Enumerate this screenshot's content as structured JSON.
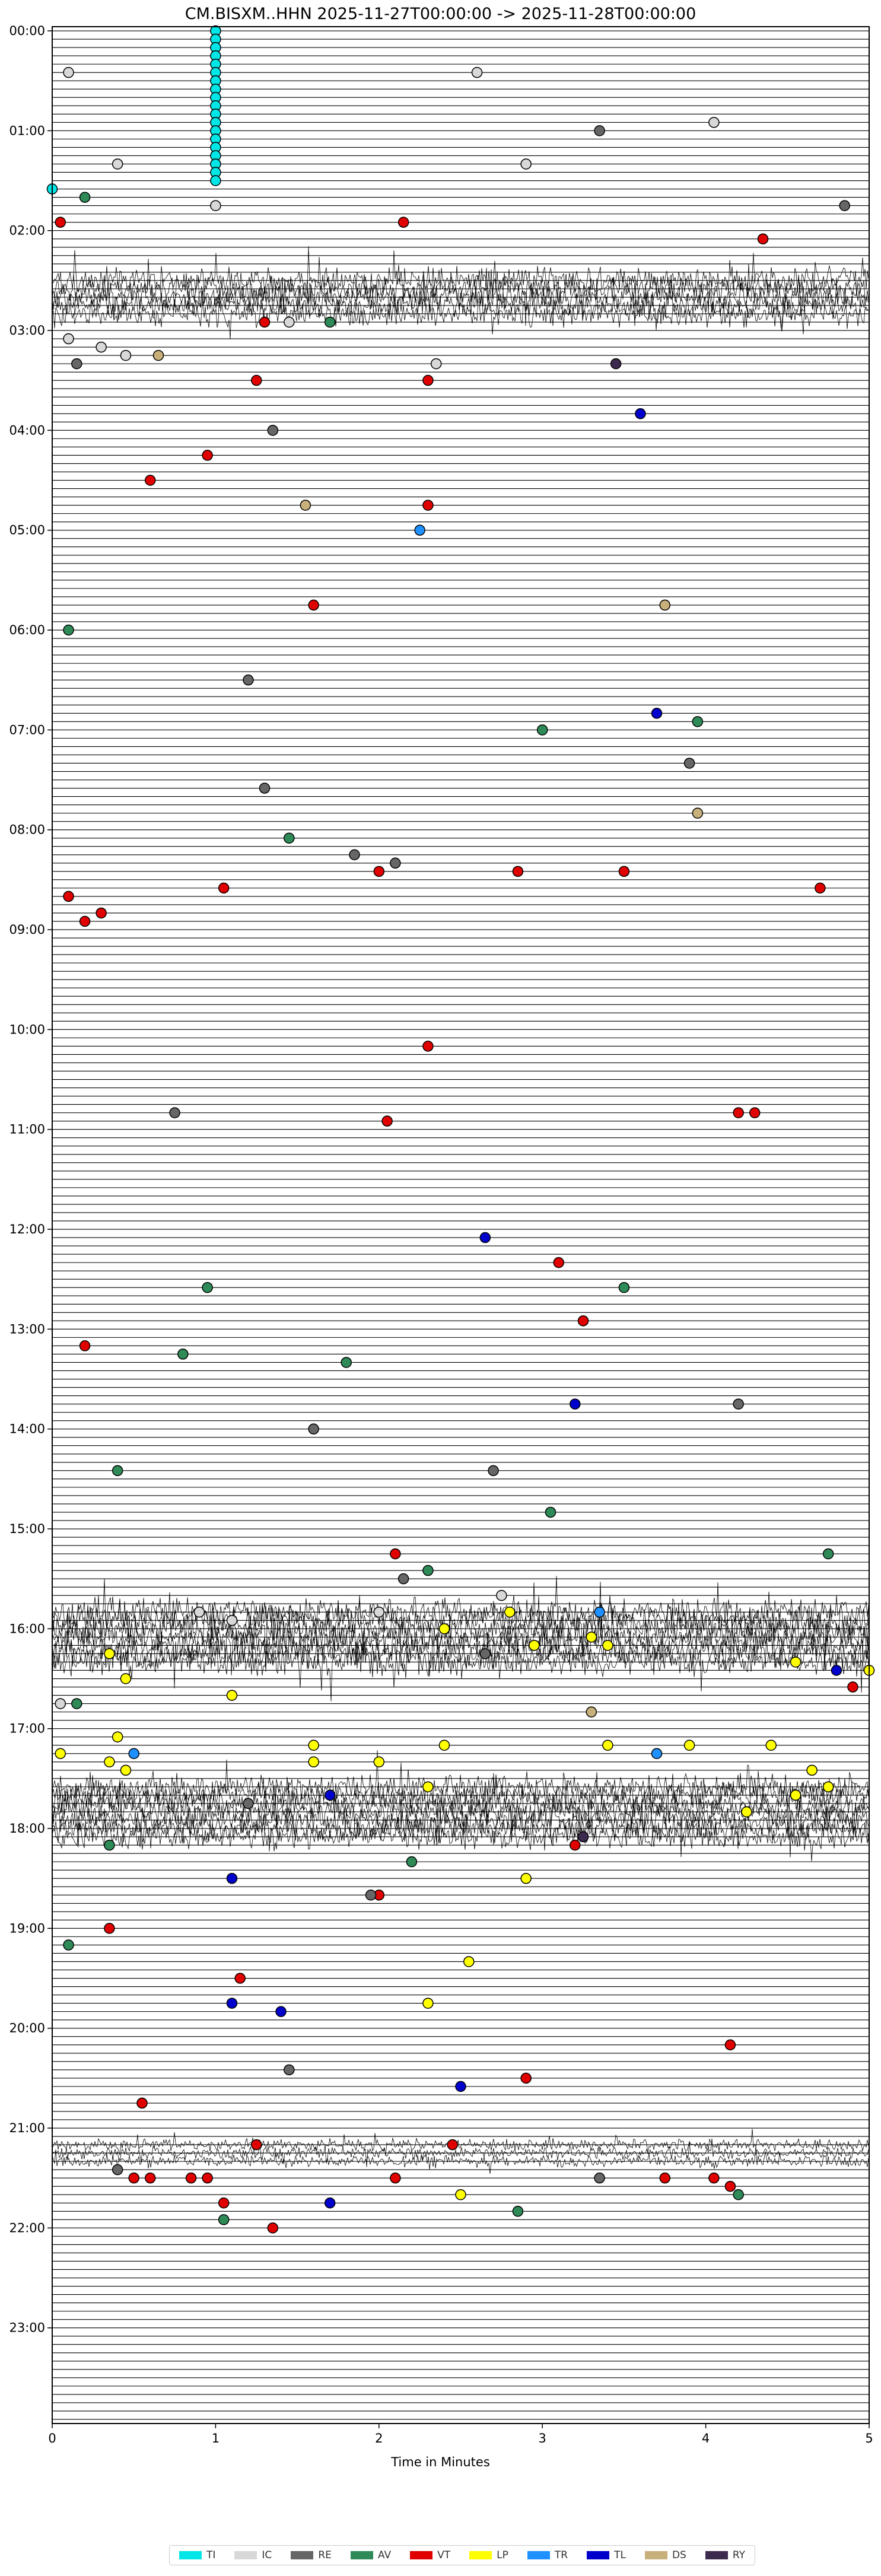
{
  "chart_data": {
    "type": "helicorder",
    "title": "CM.BISXM..HHN  2025-11-27T00:00:00 -> 2025-11-28T00:00:00",
    "xlabel": "Time in Minutes",
    "xlim": [
      0,
      5
    ],
    "x_ticks": [
      "0",
      "1",
      "2",
      "3",
      "4",
      "5"
    ],
    "y_ticks": [
      "00:00",
      "01:00",
      "02:00",
      "03:00",
      "04:00",
      "05:00",
      "06:00",
      "07:00",
      "08:00",
      "09:00",
      "10:00",
      "11:00",
      "12:00",
      "13:00",
      "14:00",
      "15:00",
      "16:00",
      "17:00",
      "18:00",
      "19:00",
      "20:00",
      "21:00",
      "22:00",
      "23:00"
    ],
    "rows_per_hour": 12,
    "legend": [
      {
        "label": "TI",
        "color": "#00e5e5"
      },
      {
        "label": "IC",
        "color": "#d8d8d8"
      },
      {
        "label": "RE",
        "color": "#666666"
      },
      {
        "label": "AV",
        "color": "#2e8b57"
      },
      {
        "label": "VT",
        "color": "#e00000"
      },
      {
        "label": "LP",
        "color": "#ffff00"
      },
      {
        "label": "TR",
        "color": "#1e90ff"
      },
      {
        "label": "TL",
        "color": "#0000cd"
      },
      {
        "label": "DS",
        "color": "#c8b07a"
      },
      {
        "label": "RY",
        "color": "#3d2b4f"
      }
    ],
    "noisy_periods": [
      {
        "rows": [
          30,
          31,
          32,
          33,
          34
        ],
        "level": 0.9
      },
      {
        "rows": [
          190,
          191,
          192,
          193,
          194,
          195,
          196
        ],
        "level": 1.0
      },
      {
        "rows": [
          211,
          212,
          213,
          214,
          215,
          216,
          217
        ],
        "level": 0.9
      },
      {
        "rows": [
          254,
          255,
          256
        ],
        "level": 0.4
      }
    ],
    "events": [
      {
        "row": 0,
        "t": 1.0,
        "class": "TI"
      },
      {
        "row": 1,
        "t": 1.0,
        "class": "TI"
      },
      {
        "row": 2,
        "t": 1.0,
        "class": "TI"
      },
      {
        "row": 3,
        "t": 1.0,
        "class": "TI"
      },
      {
        "row": 4,
        "t": 1.0,
        "class": "TI"
      },
      {
        "row": 5,
        "t": 1.0,
        "class": "TI"
      },
      {
        "row": 6,
        "t": 1.0,
        "class": "TI"
      },
      {
        "row": 7,
        "t": 1.0,
        "class": "TI"
      },
      {
        "row": 8,
        "t": 1.0,
        "class": "TI"
      },
      {
        "row": 9,
        "t": 1.0,
        "class": "TI"
      },
      {
        "row": 10,
        "t": 1.0,
        "class": "TI"
      },
      {
        "row": 11,
        "t": 1.0,
        "class": "TI"
      },
      {
        "row": 12,
        "t": 1.0,
        "class": "TI"
      },
      {
        "row": 13,
        "t": 1.0,
        "class": "TI"
      },
      {
        "row": 14,
        "t": 1.0,
        "class": "TI"
      },
      {
        "row": 15,
        "t": 1.0,
        "class": "TI"
      },
      {
        "row": 16,
        "t": 1.0,
        "class": "TI"
      },
      {
        "row": 17,
        "t": 1.0,
        "class": "TI"
      },
      {
        "row": 18,
        "t": 1.0,
        "class": "TI"
      },
      {
        "row": 19,
        "t": 0.0,
        "class": "TI"
      },
      {
        "row": 5,
        "t": 0.1,
        "class": "IC"
      },
      {
        "row": 5,
        "t": 2.6,
        "class": "IC"
      },
      {
        "row": 11,
        "t": 4.05,
        "class": "IC"
      },
      {
        "row": 12,
        "t": 3.35,
        "class": "RE"
      },
      {
        "row": 16,
        "t": 0.4,
        "class": "IC"
      },
      {
        "row": 16,
        "t": 2.9,
        "class": "IC"
      },
      {
        "row": 20,
        "t": 0.2,
        "class": "AV"
      },
      {
        "row": 21,
        "t": 1.0,
        "class": "IC"
      },
      {
        "row": 21,
        "t": 4.85,
        "class": "RE"
      },
      {
        "row": 23,
        "t": 0.05,
        "class": "VT"
      },
      {
        "row": 23,
        "t": 2.15,
        "class": "VT"
      },
      {
        "row": 25,
        "t": 4.35,
        "class": "VT"
      },
      {
        "row": 35,
        "t": 1.3,
        "class": "VT"
      },
      {
        "row": 35,
        "t": 1.7,
        "class": "AV"
      },
      {
        "row": 35,
        "t": 1.45,
        "class": "IC"
      },
      {
        "row": 37,
        "t": 0.1,
        "class": "IC"
      },
      {
        "row": 38,
        "t": 0.3,
        "class": "IC"
      },
      {
        "row": 39,
        "t": 0.45,
        "class": "IC"
      },
      {
        "row": 39,
        "t": 0.65,
        "class": "DS"
      },
      {
        "row": 40,
        "t": 0.15,
        "class": "RE"
      },
      {
        "row": 40,
        "t": 2.35,
        "class": "IC"
      },
      {
        "row": 40,
        "t": 3.45,
        "class": "RY"
      },
      {
        "row": 42,
        "t": 1.25,
        "class": "VT"
      },
      {
        "row": 42,
        "t": 2.3,
        "class": "VT"
      },
      {
        "row": 46,
        "t": 3.6,
        "class": "TL"
      },
      {
        "row": 48,
        "t": 1.35,
        "class": "RE"
      },
      {
        "row": 51,
        "t": 0.95,
        "class": "VT"
      },
      {
        "row": 54,
        "t": 0.6,
        "class": "VT"
      },
      {
        "row": 57,
        "t": 1.55,
        "class": "DS"
      },
      {
        "row": 57,
        "t": 2.3,
        "class": "VT"
      },
      {
        "row": 60,
        "t": 2.25,
        "class": "TR"
      },
      {
        "row": 69,
        "t": 1.6,
        "class": "VT"
      },
      {
        "row": 69,
        "t": 3.75,
        "class": "DS"
      },
      {
        "row": 72,
        "t": 0.1,
        "class": "AV"
      },
      {
        "row": 78,
        "t": 1.2,
        "class": "RE"
      },
      {
        "row": 82,
        "t": 3.7,
        "class": "TL"
      },
      {
        "row": 83,
        "t": 3.95,
        "class": "AV"
      },
      {
        "row": 84,
        "t": 3.0,
        "class": "AV"
      },
      {
        "row": 88,
        "t": 3.9,
        "class": "RE"
      },
      {
        "row": 91,
        "t": 1.3,
        "class": "RE"
      },
      {
        "row": 94,
        "t": 3.95,
        "class": "DS"
      },
      {
        "row": 97,
        "t": 1.45,
        "class": "AV"
      },
      {
        "row": 99,
        "t": 1.85,
        "class": "RE"
      },
      {
        "row": 100,
        "t": 2.1,
        "class": "RE"
      },
      {
        "row": 101,
        "t": 2.0,
        "class": "VT"
      },
      {
        "row": 101,
        "t": 2.85,
        "class": "VT"
      },
      {
        "row": 101,
        "t": 3.5,
        "class": "VT"
      },
      {
        "row": 103,
        "t": 1.05,
        "class": "VT"
      },
      {
        "row": 103,
        "t": 4.7,
        "class": "VT"
      },
      {
        "row": 104,
        "t": 0.1,
        "class": "VT"
      },
      {
        "row": 106,
        "t": 0.3,
        "class": "VT"
      },
      {
        "row": 107,
        "t": 0.2,
        "class": "VT"
      },
      {
        "row": 122,
        "t": 2.3,
        "class": "VT"
      },
      {
        "row": 130,
        "t": 0.75,
        "class": "RE"
      },
      {
        "row": 131,
        "t": 2.05,
        "class": "VT"
      },
      {
        "row": 130,
        "t": 4.2,
        "class": "VT"
      },
      {
        "row": 130,
        "t": 4.3,
        "class": "VT"
      },
      {
        "row": 145,
        "t": 2.65,
        "class": "TL"
      },
      {
        "row": 148,
        "t": 3.1,
        "class": "VT"
      },
      {
        "row": 151,
        "t": 0.95,
        "class": "AV"
      },
      {
        "row": 151,
        "t": 3.5,
        "class": "AV"
      },
      {
        "row": 155,
        "t": 3.25,
        "class": "VT"
      },
      {
        "row": 158,
        "t": 0.2,
        "class": "VT"
      },
      {
        "row": 159,
        "t": 0.8,
        "class": "AV"
      },
      {
        "row": 160,
        "t": 1.8,
        "class": "AV"
      },
      {
        "row": 165,
        "t": 3.2,
        "class": "TL"
      },
      {
        "row": 165,
        "t": 4.2,
        "class": "RE"
      },
      {
        "row": 168,
        "t": 1.6,
        "class": "RE"
      },
      {
        "row": 173,
        "t": 0.4,
        "class": "AV"
      },
      {
        "row": 173,
        "t": 2.7,
        "class": "RE"
      },
      {
        "row": 178,
        "t": 3.05,
        "class": "AV"
      },
      {
        "row": 183,
        "t": 2.1,
        "class": "VT"
      },
      {
        "row": 183,
        "t": 4.75,
        "class": "AV"
      },
      {
        "row": 185,
        "t": 2.3,
        "class": "AV"
      },
      {
        "row": 186,
        "t": 2.15,
        "class": "RE"
      },
      {
        "row": 188,
        "t": 2.75,
        "class": "IC"
      },
      {
        "row": 190,
        "t": 0.9,
        "class": "IC"
      },
      {
        "row": 190,
        "t": 2.0,
        "class": "IC"
      },
      {
        "row": 190,
        "t": 2.8,
        "class": "LP"
      },
      {
        "row": 190,
        "t": 3.35,
        "class": "TR"
      },
      {
        "row": 191,
        "t": 1.1,
        "class": "IC"
      },
      {
        "row": 192,
        "t": 2.4,
        "class": "LP"
      },
      {
        "row": 193,
        "t": 3.3,
        "class": "LP"
      },
      {
        "row": 194,
        "t": 2.95,
        "class": "LP"
      },
      {
        "row": 194,
        "t": 3.4,
        "class": "LP"
      },
      {
        "row": 195,
        "t": 0.35,
        "class": "LP"
      },
      {
        "row": 195,
        "t": 2.65,
        "class": "RE"
      },
      {
        "row": 196,
        "t": 4.55,
        "class": "LP"
      },
      {
        "row": 197,
        "t": 4.8,
        "class": "TL"
      },
      {
        "row": 197,
        "t": 5.0,
        "class": "LP"
      },
      {
        "row": 198,
        "t": 0.45,
        "class": "LP"
      },
      {
        "row": 199,
        "t": 4.9,
        "class": "VT"
      },
      {
        "row": 200,
        "t": 1.1,
        "class": "LP"
      },
      {
        "row": 201,
        "t": 0.05,
        "class": "IC"
      },
      {
        "row": 201,
        "t": 0.15,
        "class": "AV"
      },
      {
        "row": 202,
        "t": 3.3,
        "class": "DS"
      },
      {
        "row": 205,
        "t": 0.4,
        "class": "LP"
      },
      {
        "row": 206,
        "t": 1.6,
        "class": "LP"
      },
      {
        "row": 206,
        "t": 2.4,
        "class": "LP"
      },
      {
        "row": 206,
        "t": 3.4,
        "class": "LP"
      },
      {
        "row": 206,
        "t": 3.9,
        "class": "LP"
      },
      {
        "row": 206,
        "t": 4.4,
        "class": "LP"
      },
      {
        "row": 207,
        "t": 0.05,
        "class": "LP"
      },
      {
        "row": 207,
        "t": 0.5,
        "class": "TR"
      },
      {
        "row": 207,
        "t": 3.7,
        "class": "TR"
      },
      {
        "row": 208,
        "t": 0.35,
        "class": "LP"
      },
      {
        "row": 208,
        "t": 1.6,
        "class": "LP"
      },
      {
        "row": 208,
        "t": 2.0,
        "class": "LP"
      },
      {
        "row": 209,
        "t": 0.45,
        "class": "LP"
      },
      {
        "row": 209,
        "t": 4.65,
        "class": "LP"
      },
      {
        "row": 211,
        "t": 2.3,
        "class": "LP"
      },
      {
        "row": 211,
        "t": 4.75,
        "class": "LP"
      },
      {
        "row": 212,
        "t": 1.7,
        "class": "TL"
      },
      {
        "row": 212,
        "t": 4.55,
        "class": "LP"
      },
      {
        "row": 213,
        "t": 1.2,
        "class": "RE"
      },
      {
        "row": 214,
        "t": 4.25,
        "class": "LP"
      },
      {
        "row": 217,
        "t": 3.25,
        "class": "RY"
      },
      {
        "row": 218,
        "t": 3.2,
        "class": "VT"
      },
      {
        "row": 218,
        "t": 0.35,
        "class": "AV"
      },
      {
        "row": 220,
        "t": 2.2,
        "class": "AV"
      },
      {
        "row": 222,
        "t": 1.1,
        "class": "TL"
      },
      {
        "row": 222,
        "t": 2.9,
        "class": "LP"
      },
      {
        "row": 224,
        "t": 2.0,
        "class": "VT"
      },
      {
        "row": 224,
        "t": 1.95,
        "class": "RE"
      },
      {
        "row": 228,
        "t": 0.35,
        "class": "VT"
      },
      {
        "row": 230,
        "t": 0.1,
        "class": "AV"
      },
      {
        "row": 232,
        "t": 2.55,
        "class": "LP"
      },
      {
        "row": 234,
        "t": 1.15,
        "class": "VT"
      },
      {
        "row": 237,
        "t": 1.1,
        "class": "TL"
      },
      {
        "row": 237,
        "t": 2.3,
        "class": "LP"
      },
      {
        "row": 238,
        "t": 1.4,
        "class": "TL"
      },
      {
        "row": 242,
        "t": 4.15,
        "class": "VT"
      },
      {
        "row": 245,
        "t": 1.45,
        "class": "RE"
      },
      {
        "row": 246,
        "t": 2.9,
        "class": "VT"
      },
      {
        "row": 247,
        "t": 2.5,
        "class": "TL"
      },
      {
        "row": 249,
        "t": 0.55,
        "class": "VT"
      },
      {
        "row": 254,
        "t": 1.25,
        "class": "VT"
      },
      {
        "row": 254,
        "t": 2.45,
        "class": "VT"
      },
      {
        "row": 257,
        "t": 0.4,
        "class": "RE"
      },
      {
        "row": 258,
        "t": 0.5,
        "class": "VT"
      },
      {
        "row": 258,
        "t": 0.6,
        "class": "VT"
      },
      {
        "row": 258,
        "t": 0.85,
        "class": "VT"
      },
      {
        "row": 258,
        "t": 0.95,
        "class": "VT"
      },
      {
        "row": 258,
        "t": 2.1,
        "class": "VT"
      },
      {
        "row": 258,
        "t": 3.35,
        "class": "RE"
      },
      {
        "row": 258,
        "t": 3.75,
        "class": "VT"
      },
      {
        "row": 258,
        "t": 4.05,
        "class": "VT"
      },
      {
        "row": 259,
        "t": 4.15,
        "class": "VT"
      },
      {
        "row": 260,
        "t": 2.5,
        "class": "LP"
      },
      {
        "row": 260,
        "t": 4.2,
        "class": "AV"
      },
      {
        "row": 261,
        "t": 1.05,
        "class": "VT"
      },
      {
        "row": 261,
        "t": 1.7,
        "class": "TL"
      },
      {
        "row": 262,
        "t": 2.85,
        "class": "AV"
      },
      {
        "row": 263,
        "t": 1.05,
        "class": "AV"
      },
      {
        "row": 264,
        "t": 1.35,
        "class": "VT"
      }
    ]
  }
}
